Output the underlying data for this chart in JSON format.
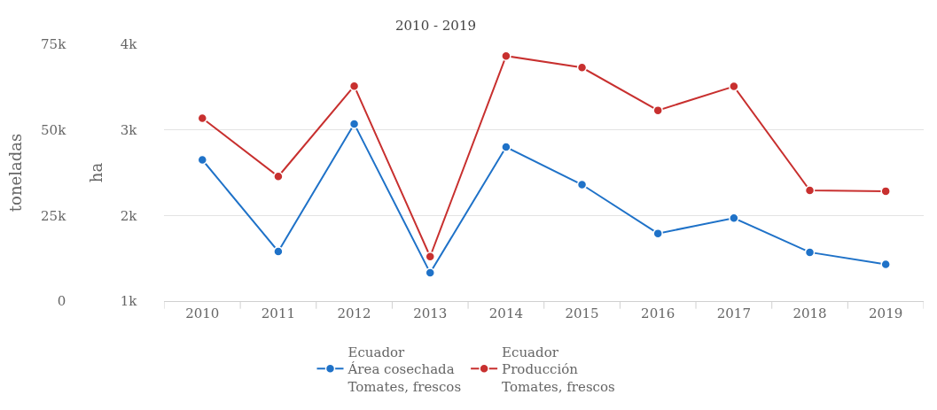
{
  "chart_data": {
    "type": "line",
    "title": "2010 - 2019",
    "categories": [
      "2010",
      "2011",
      "2012",
      "2013",
      "2014",
      "2015",
      "2016",
      "2017",
      "2018",
      "2019"
    ],
    "series": [
      {
        "name": "Ecuador\nÁrea cosechada\nTomates, frescos",
        "color": "#1f72c8",
        "axis": "y2",
        "values": [
          2650,
          1580,
          3070,
          1330,
          2800,
          2360,
          1790,
          1970,
          1570,
          1430
        ]
      },
      {
        "name": "Ecuador\nProducción\nTomates, frescos",
        "color": "#c8302f",
        "values": [
          53400,
          36400,
          62800,
          13000,
          71600,
          68200,
          55700,
          62700,
          32300,
          32100
        ]
      }
    ],
    "ylabel": "toneladas",
    "y2label": "ha",
    "ylim": [
      0,
      75000
    ],
    "yticks": [
      0,
      {
        "value": 25000,
        "label": "25k"
      },
      {
        "value": 50000,
        "label": "50k"
      },
      {
        "value": 75000,
        "label": "75k"
      }
    ],
    "y2lim": [
      1000,
      4000
    ],
    "y2ticks": [
      {
        "value": 1000,
        "label": "1k"
      },
      {
        "value": 2000,
        "label": "2k"
      },
      {
        "value": 3000,
        "label": "3k"
      },
      {
        "value": 4000,
        "label": "4k"
      }
    ],
    "grid": "y",
    "legend": "bottom",
    "marker": "circle",
    "line_style": "solid"
  }
}
